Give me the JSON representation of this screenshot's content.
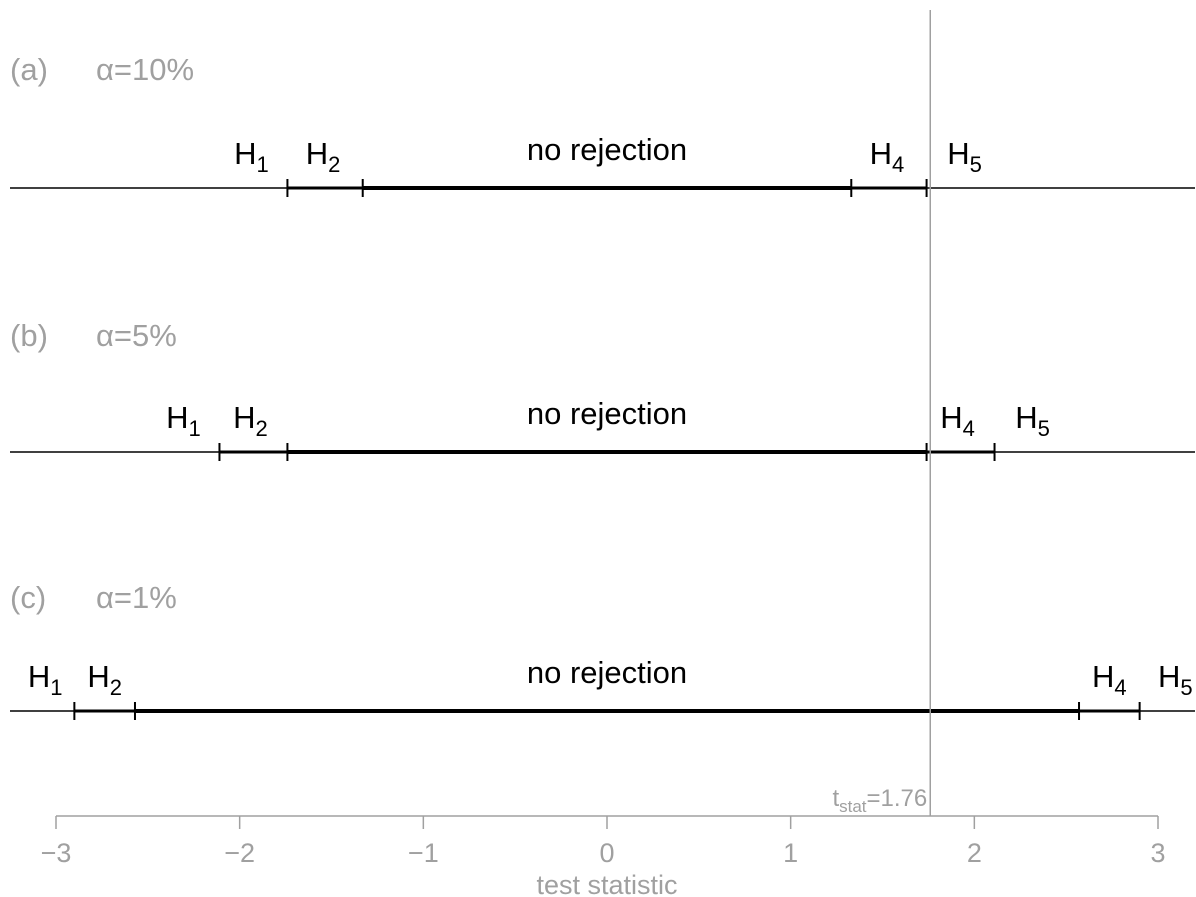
{
  "chart_data": {
    "type": "number-line",
    "xlabel": "test statistic",
    "xlim": [
      -3,
      3
    ],
    "ticks": [
      -3,
      -2,
      -1,
      0,
      1,
      2,
      3
    ],
    "tick_labels": [
      "−3",
      "−2",
      "−1",
      "0",
      "1",
      "2",
      "3"
    ],
    "t_stat": {
      "value": 1.76,
      "label_main": "t",
      "label_sub": "stat",
      "label_rest": "=1.76"
    },
    "no_rejection_label": "no rejection",
    "panels": [
      {
        "id": "a",
        "label": "(a)",
        "alpha_symbol": "α",
        "alpha_text": "=10%",
        "cutoffs": [
          -1.74,
          -1.33,
          1.33,
          1.74
        ],
        "region_labels": [
          {
            "main": "H",
            "sub": "1"
          },
          {
            "main": "H",
            "sub": "2"
          },
          {
            "main": "H",
            "sub": "4"
          },
          {
            "main": "H",
            "sub": "5"
          }
        ]
      },
      {
        "id": "b",
        "label": "(b)",
        "alpha_symbol": "α",
        "alpha_text": "=5%",
        "cutoffs": [
          -2.11,
          -1.74,
          1.74,
          2.11
        ],
        "region_labels": [
          {
            "main": "H",
            "sub": "1"
          },
          {
            "main": "H",
            "sub": "2"
          },
          {
            "main": "H",
            "sub": "4"
          },
          {
            "main": "H",
            "sub": "5"
          }
        ]
      },
      {
        "id": "c",
        "label": "(c)",
        "alpha_symbol": "α",
        "alpha_text": "=1%",
        "cutoffs": [
          -2.9,
          -2.57,
          2.57,
          2.9
        ],
        "region_labels": [
          {
            "main": "H",
            "sub": "1"
          },
          {
            "main": "H",
            "sub": "2"
          },
          {
            "main": "H",
            "sub": "4"
          },
          {
            "main": "H",
            "sub": "5"
          }
        ]
      }
    ],
    "colors": {
      "lines": "#000000",
      "axis": "#a0a0a0",
      "reference_line": "#a0a0a0"
    }
  }
}
